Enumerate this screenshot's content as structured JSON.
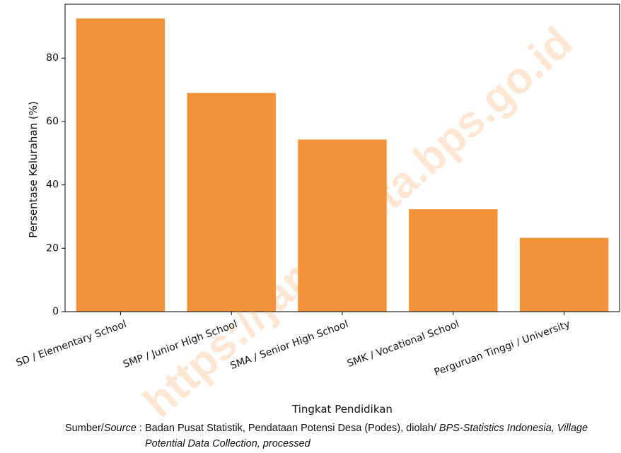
{
  "chart_data": {
    "type": "bar",
    "categories": [
      "SD / Elementary School",
      "SMP / Junior High School",
      "SMA / Senior High School",
      "SMK / Vocational School",
      "Perguruan Tinggi / University"
    ],
    "values": [
      92.5,
      69.0,
      54.3,
      32.3,
      23.3
    ],
    "xlabel": "Tingkat Pendidikan",
    "ylabel": "Persentase Kelurahan (%)",
    "ylim": [
      0,
      97
    ],
    "yticks": [
      0,
      20,
      40,
      60,
      80
    ],
    "bar_color": "#F4923A",
    "grid": false
  },
  "watermark": "https://jambikota.bps.go.id",
  "source": {
    "label_prefix": "Sumber/",
    "label_italic": "Source",
    "label_suffix": " :",
    "text_plain": "Badan Pusat Statistik, Pendataan Potensi Desa (Podes), diolah/ ",
    "text_italic_1": "BPS-Statistics Indonesia, Village",
    "text_italic_2": "Potential Data Collection, processed"
  }
}
